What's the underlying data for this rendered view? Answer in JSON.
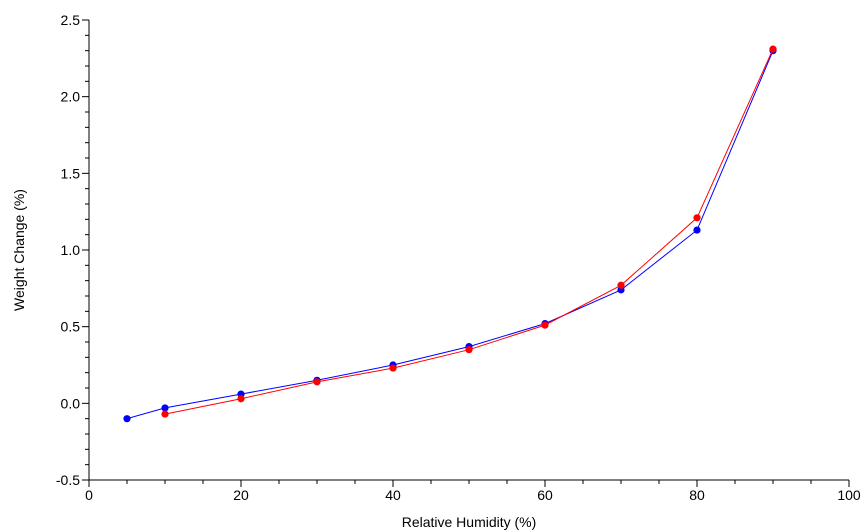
{
  "chart_data": {
    "type": "line",
    "title": "",
    "xlabel": "Relative Humidity (%)",
    "ylabel": "Weight Change (%)",
    "xlim": [
      0,
      100
    ],
    "ylim": [
      -0.5,
      2.5
    ],
    "x_ticks": [
      0,
      20,
      40,
      60,
      80,
      100
    ],
    "x_tick_labels": [
      "0",
      "20",
      "40",
      "60",
      "80",
      "100"
    ],
    "y_ticks": [
      -0.5,
      0.0,
      0.5,
      1.0,
      1.5,
      2.0,
      2.5
    ],
    "y_tick_labels": [
      "-0.5",
      "0.0",
      "0.5",
      "1.0",
      "1.5",
      "2.0",
      "2.5"
    ],
    "grid": false,
    "legend": "none",
    "series": [
      {
        "color": "#0000ff",
        "x": [
          5,
          10,
          20,
          30,
          40,
          50,
          60,
          70,
          80,
          90
        ],
        "y": [
          -0.1,
          -0.03,
          0.06,
          0.15,
          0.25,
          0.37,
          0.52,
          0.74,
          1.13,
          2.3
        ]
      },
      {
        "color": "#ff0000",
        "x": [
          10,
          20,
          30,
          40,
          50,
          60,
          70,
          80,
          90
        ],
        "y": [
          -0.07,
          0.03,
          0.14,
          0.23,
          0.35,
          0.51,
          0.77,
          1.21,
          2.31
        ]
      }
    ]
  }
}
